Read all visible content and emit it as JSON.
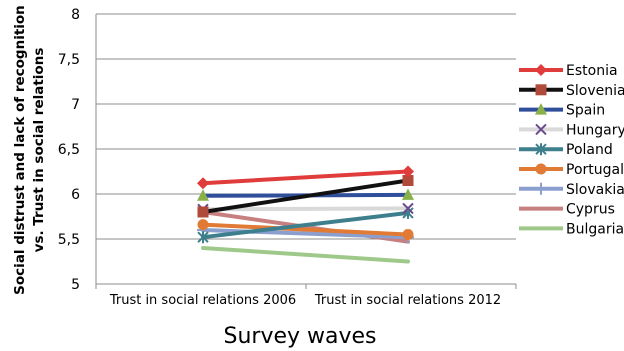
{
  "chart_data": {
    "type": "line",
    "title": "",
    "xlabel": "Survey waves",
    "ylabel_lines": [
      "Social distrust and lack of recognition",
      "vs. Trust in social relations"
    ],
    "categories": [
      "Trust in social relations 2006",
      "Trust in social relations 2012"
    ],
    "ylim": [
      5,
      8
    ],
    "yticks": [
      "5",
      "5,5",
      "6",
      "6,5",
      "7",
      "7,5",
      "8"
    ],
    "grid": true,
    "legend_position": "right",
    "series": [
      {
        "name": "Estonia",
        "values": [
          6.12,
          6.25
        ],
        "color": "#e03c3c",
        "marker": "diamond"
      },
      {
        "name": "Slovenia",
        "values": [
          5.8,
          6.15
        ],
        "color": "#111111",
        "marker": "square",
        "marker_color": "#b04a3a"
      },
      {
        "name": "Spain",
        "values": [
          5.98,
          5.99
        ],
        "color": "#2f4f9a",
        "marker": "triangle",
        "marker_color": "#8ab04a"
      },
      {
        "name": "Hungary",
        "values": [
          5.83,
          5.84
        ],
        "color": "#d9d9d9",
        "marker": "x",
        "marker_color": "#6a4a8c"
      },
      {
        "name": "Poland",
        "values": [
          5.52,
          5.79
        ],
        "color": "#3d7f8c",
        "marker": "asterisk"
      },
      {
        "name": "Portugal",
        "values": [
          5.66,
          5.55
        ],
        "color": "#e07a35",
        "marker": "circle"
      },
      {
        "name": "Slovakia",
        "values": [
          5.6,
          5.52
        ],
        "color": "#8b9fcf",
        "marker": "plus"
      },
      {
        "name": "Cyprus",
        "values": [
          5.8,
          5.47
        ],
        "color": "#c77f7f",
        "marker": "none"
      },
      {
        "name": "Bulgaria",
        "values": [
          5.4,
          5.25
        ],
        "color": "#9fc98b",
        "marker": "none"
      }
    ]
  }
}
